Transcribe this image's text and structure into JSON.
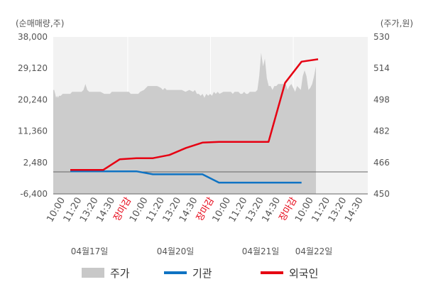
{
  "chart_data": {
    "type": "area",
    "left_axis_unit": "(순매매량,주)",
    "right_axis_unit": "(주가,원)",
    "left_ticks": [
      "38,000",
      "29,120",
      "20,240",
      "11,360",
      "2,480",
      "-6,400"
    ],
    "right_ticks": [
      "530",
      "514",
      "498",
      "482",
      "466",
      "450"
    ],
    "left_range": [
      -6400,
      38000
    ],
    "right_range": [
      450,
      530
    ],
    "x_ticks": [
      "10:00",
      "11:20",
      "13:20",
      "14:30",
      "장마감",
      "10:00",
      "11:20",
      "13:20",
      "14:30",
      "장마감",
      "10:00",
      "11:20",
      "13:20",
      "14:30",
      "장마감",
      "10:00",
      "11:20",
      "13:20",
      "14:30"
    ],
    "close_label": "장마감",
    "dates": [
      "04월17일",
      "04월20일",
      "04월21일",
      "04월22일"
    ],
    "legend": [
      {
        "name": "주가",
        "color": "#c8c8c8",
        "type": "area"
      },
      {
        "name": "기관",
        "color": "#0f73c3",
        "type": "line"
      },
      {
        "name": "외국인",
        "color": "#e60012",
        "type": "line"
      }
    ],
    "series": [
      {
        "name": "주가",
        "axis": "right",
        "points": [
          [
            0,
            503
          ],
          [
            0.5,
            503
          ],
          [
            1,
            501
          ],
          [
            1.5,
            499
          ],
          [
            2,
            500
          ],
          [
            2.5,
            499
          ],
          [
            3,
            500
          ],
          [
            4,
            500
          ],
          [
            5,
            501
          ],
          [
            7,
            501
          ],
          [
            9,
            501
          ],
          [
            10,
            502
          ],
          [
            13,
            502
          ],
          [
            15,
            502
          ],
          [
            16,
            503
          ],
          [
            17,
            506
          ],
          [
            18,
            503
          ],
          [
            19,
            502
          ],
          [
            22,
            502
          ],
          [
            25,
            502
          ],
          [
            27,
            501
          ],
          [
            29,
            501
          ],
          [
            30,
            501
          ],
          [
            31,
            502
          ],
          [
            35,
            502
          ],
          [
            37,
            502
          ],
          [
            38,
            502
          ],
          [
            40,
            502
          ],
          [
            41,
            501
          ],
          [
            42,
            501
          ],
          [
            45,
            501
          ],
          [
            46,
            502
          ],
          [
            48,
            503
          ],
          [
            50,
            505
          ],
          [
            55,
            505
          ],
          [
            57,
            504
          ],
          [
            58,
            503
          ],
          [
            59,
            504
          ],
          [
            60,
            503
          ],
          [
            63,
            503
          ],
          [
            68,
            503
          ],
          [
            70,
            502
          ],
          [
            72,
            503
          ],
          [
            74,
            502
          ],
          [
            75,
            503
          ],
          [
            76,
            501
          ],
          [
            77,
            501
          ],
          [
            78,
            500
          ],
          [
            79,
            501
          ],
          [
            80,
            499
          ],
          [
            81,
            501
          ],
          [
            82,
            500
          ],
          [
            83,
            501
          ],
          [
            84,
            500
          ],
          [
            85,
            502
          ],
          [
            86,
            501
          ],
          [
            87,
            502
          ],
          [
            88,
            501
          ],
          [
            90,
            502
          ],
          [
            92,
            502
          ],
          [
            94,
            502
          ],
          [
            95,
            501
          ],
          [
            96,
            502
          ],
          [
            98,
            502
          ],
          [
            99,
            501
          ],
          [
            100,
            501
          ],
          [
            101,
            502
          ],
          [
            102,
            501
          ],
          [
            103,
            501
          ],
          [
            104,
            502
          ],
          [
            105,
            502
          ],
          [
            106,
            502
          ],
          [
            107,
            502
          ],
          [
            108,
            503
          ],
          [
            109,
            510
          ],
          [
            110,
            522
          ],
          [
            111,
            515
          ],
          [
            112,
            519
          ],
          [
            113,
            509
          ],
          [
            114,
            505
          ],
          [
            115,
            505
          ],
          [
            116,
            503
          ],
          [
            117,
            505
          ],
          [
            118,
            505
          ],
          [
            119,
            506
          ],
          [
            120,
            506
          ],
          [
            123,
            506
          ],
          [
            124,
            503
          ],
          [
            125,
            505
          ],
          [
            126,
            506
          ],
          [
            127,
            504
          ],
          [
            128,
            502
          ],
          [
            129,
            505
          ],
          [
            130,
            504
          ],
          [
            131,
            503
          ],
          [
            132,
            510
          ],
          [
            133,
            513
          ],
          [
            134,
            510
          ],
          [
            135,
            503
          ],
          [
            136,
            504
          ],
          [
            137,
            506
          ],
          [
            138,
            510
          ],
          [
            139,
            515
          ]
        ]
      },
      {
        "name": "기관",
        "axis": "left",
        "points": [
          [
            0,
            -20
          ],
          [
            2,
            -20
          ],
          [
            4,
            -20
          ],
          [
            5,
            -850
          ],
          [
            6,
            -850
          ],
          [
            8,
            -850
          ],
          [
            9,
            -3200
          ],
          [
            10,
            -3200
          ],
          [
            12,
            -3200
          ],
          [
            14,
            -3200
          ]
        ]
      },
      {
        "name": "외국인",
        "axis": "left",
        "points": [
          [
            0,
            400
          ],
          [
            2,
            400
          ],
          [
            3,
            3400
          ],
          [
            4,
            3700
          ],
          [
            5,
            3700
          ],
          [
            6,
            4600
          ],
          [
            7,
            6600
          ],
          [
            8,
            8100
          ],
          [
            9,
            8300
          ],
          [
            11,
            8300
          ],
          [
            12,
            8300
          ],
          [
            13,
            25000
          ],
          [
            14,
            31000
          ],
          [
            15,
            31700
          ]
        ]
      }
    ]
  }
}
